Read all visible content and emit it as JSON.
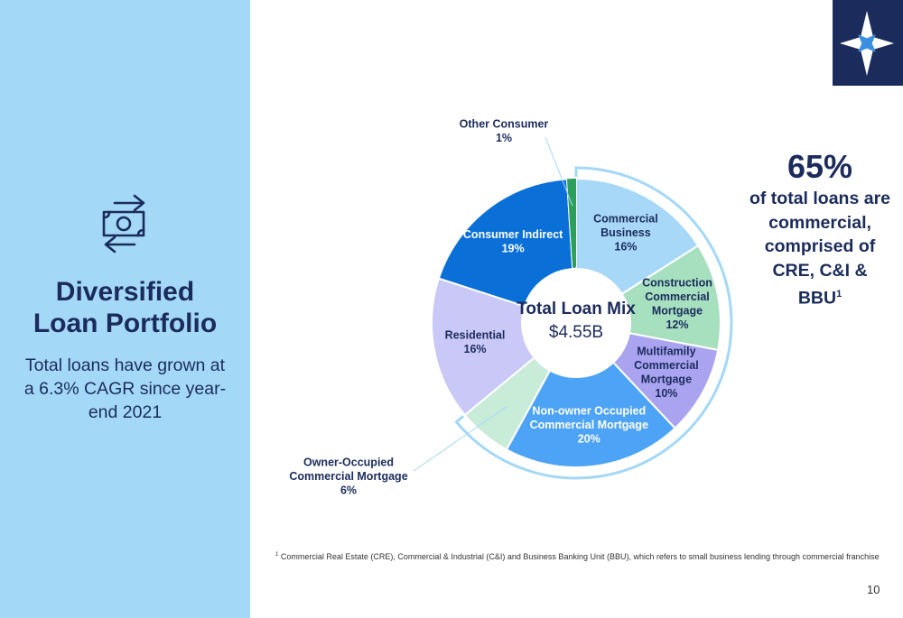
{
  "sidebar": {
    "icon": "money-exchange-icon",
    "title_line1": "Diversified",
    "title_line2": "Loan Portfolio",
    "subtitle": "Total loans have grown at a 6.3% CAGR since year-end 2021"
  },
  "logo": {
    "icon": "compass-star-icon"
  },
  "chart_data": {
    "type": "pie",
    "donut": true,
    "center_title": "Total Loan Mix",
    "center_value": "$4.55B",
    "slices": [
      {
        "label_lines": [
          "Commercial",
          "Business"
        ],
        "value": 16,
        "value_label": "16%",
        "color": "#a8d8f8",
        "label_color": "#1b2c5c"
      },
      {
        "label_lines": [
          "Construction",
          "Commercial",
          "Mortgage"
        ],
        "value": 12,
        "value_label": "12%",
        "color": "#a7e0bf",
        "label_color": "#1b2c5c"
      },
      {
        "label_lines": [
          "Multifamily",
          "Commercial",
          "Mortgage"
        ],
        "value": 10,
        "value_label": "10%",
        "color": "#aaa3f0",
        "label_color": "#1b2c5c"
      },
      {
        "label_lines": [
          "Non-owner Occupied",
          "Commercial Mortgage"
        ],
        "value": 20,
        "value_label": "20%",
        "color": "#4da3f5",
        "label_color": "#ffffff"
      },
      {
        "label_lines": [
          "Owner-Occupied",
          "Commercial Mortgage"
        ],
        "value": 6,
        "value_label": "6%",
        "color": "#c9ecd9",
        "label_color": "#1b2c5c",
        "external": true
      },
      {
        "label_lines": [
          "Residential"
        ],
        "value": 16,
        "value_label": "16%",
        "color": "#c9c8f6",
        "label_color": "#1b2c5c"
      },
      {
        "label_lines": [
          "Consumer Indirect"
        ],
        "value": 19,
        "value_label": "19%",
        "color": "#0a70d8",
        "label_color": "#ffffff"
      },
      {
        "label_lines": [
          "Other Consumer"
        ],
        "value": 1,
        "value_label": "1%",
        "color": "#2266cc",
        "label_color": "#1b2c5c",
        "external": true
      }
    ],
    "highlight_bracket_color": "#a4d8f7",
    "green_marker_color": "#2e9e5b"
  },
  "callout": {
    "pct": "65%",
    "desc": "of total loans are\ncommercial,\ncomprised of\nCRE, C&I &\nBBU",
    "sup": "1"
  },
  "footnote": {
    "sup": "1",
    "text": " Commercial Real Estate (CRE), Commercial & Industrial (C&I) and Business Banking Unit  (BBU), which refers to small business lending through commercial franchise"
  },
  "page_number": "10"
}
